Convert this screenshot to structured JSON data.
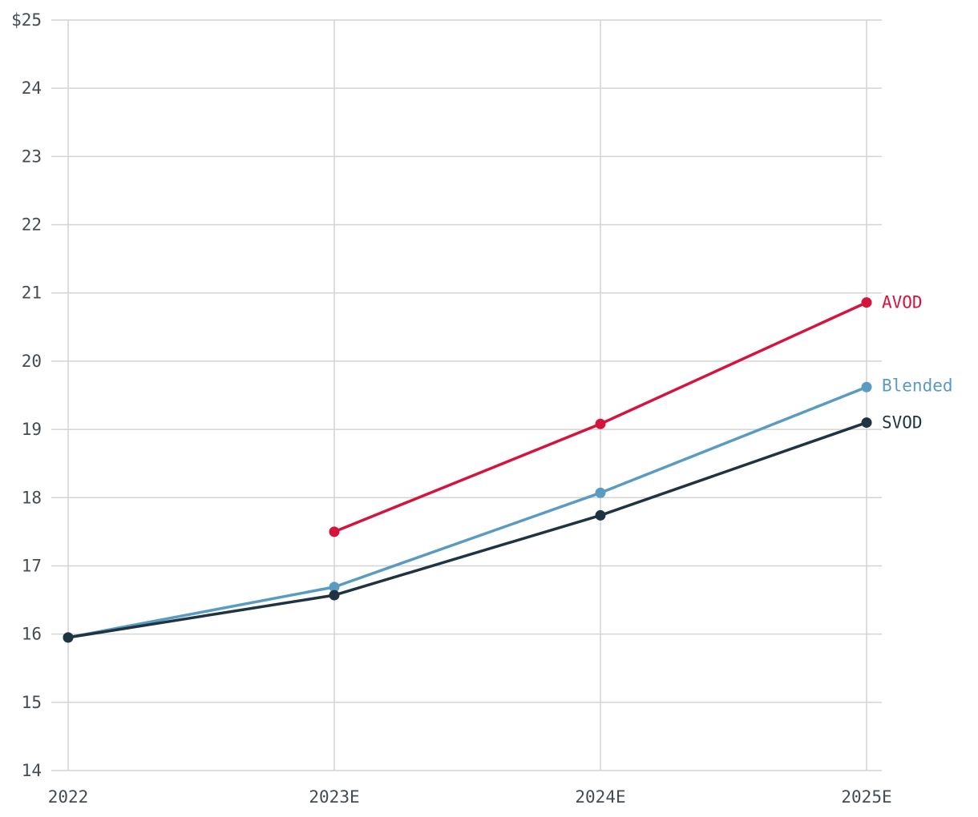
{
  "chart_data": {
    "type": "line",
    "title": "",
    "xlabel": "",
    "ylabel": "",
    "categories": [
      "2022",
      "2023E",
      "2024E",
      "2025E"
    ],
    "ylim": [
      14,
      25
    ],
    "yticks": [
      14,
      15,
      16,
      17,
      18,
      19,
      20,
      21,
      22,
      23,
      24,
      25
    ],
    "ytick_labels": [
      "14",
      "15",
      "16",
      "17",
      "18",
      "19",
      "20",
      "21",
      "22",
      "23",
      "24",
      "$25"
    ],
    "grid": true,
    "legend": "direct labels at line ends",
    "series": [
      {
        "name": "AVOD",
        "color": "#d4143d",
        "values": [
          null,
          17.5,
          19.08,
          20.86
        ]
      },
      {
        "name": "Blended",
        "color": "#5a9bc2",
        "values": [
          15.95,
          16.69,
          18.07,
          19.62
        ]
      },
      {
        "name": "SVOD",
        "color": "#1f3340",
        "values": [
          15.95,
          16.57,
          17.74,
          19.1
        ]
      }
    ]
  }
}
